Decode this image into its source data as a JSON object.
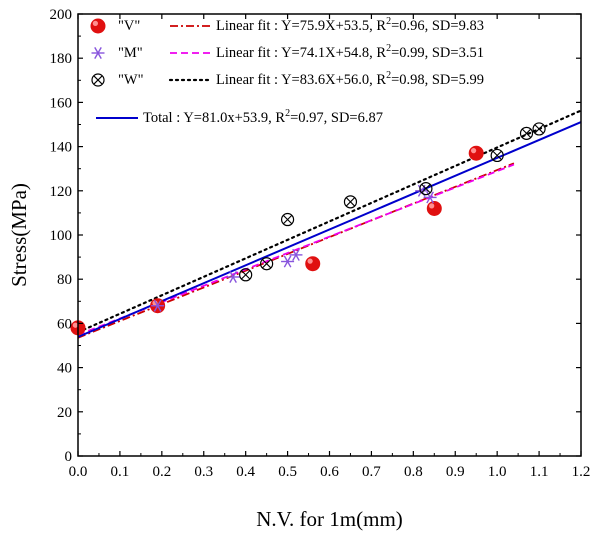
{
  "chart_data": {
    "type": "scatter",
    "xlabel": "N.V. for 1m(mm)",
    "ylabel": "Stress(MPa)",
    "xlim": [
      0.0,
      1.2
    ],
    "ylim": [
      0,
      200
    ],
    "xticks": [
      "0.0",
      "0.1",
      "0.2",
      "0.3",
      "0.4",
      "0.5",
      "0.6",
      "0.7",
      "0.8",
      "0.9",
      "1.0",
      "1.1",
      "1.2"
    ],
    "yticks": [
      "0",
      "20",
      "40",
      "60",
      "80",
      "100",
      "120",
      "140",
      "160",
      "180",
      "200"
    ],
    "grid": false,
    "legend_position": "top-left",
    "series": [
      {
        "name": "\"V\"",
        "marker": "filled-circle",
        "color": "#e01010",
        "points": [
          [
            0.0,
            58
          ],
          [
            0.19,
            68
          ],
          [
            0.56,
            87
          ],
          [
            0.85,
            112
          ],
          [
            0.95,
            137
          ]
        ],
        "fit": {
          "label_pre": "Linear fit : Y=75.9X+53.5, R",
          "sup": "2",
          "label_post": "=0.96, SD=9.83",
          "slope": 75.9,
          "intercept": 53.5,
          "x_range": [
            0.0,
            1.04
          ],
          "color": "#cc0000",
          "style": "dash-dot"
        }
      },
      {
        "name": "\"M\"",
        "marker": "star",
        "color": "#8855dd",
        "points": [
          [
            0.19,
            68
          ],
          [
            0.37,
            81
          ],
          [
            0.5,
            88
          ],
          [
            0.52,
            91
          ],
          [
            0.82,
            120
          ],
          [
            0.84,
            117
          ]
        ],
        "fit": {
          "label_pre": "Linear fit : Y=74.1X+54.8, R",
          "sup": "2",
          "label_post": "=0.99, SD=3.51",
          "slope": 74.1,
          "intercept": 54.8,
          "x_range": [
            0.0,
            1.04
          ],
          "color": "#ee00ee",
          "style": "dash"
        }
      },
      {
        "name": "\"W\"",
        "marker": "circle-x",
        "color": "#000000",
        "points": [
          [
            0.4,
            82
          ],
          [
            0.45,
            87
          ],
          [
            0.5,
            107
          ],
          [
            0.65,
            115
          ],
          [
            0.83,
            121
          ],
          [
            1.0,
            136
          ],
          [
            1.07,
            146
          ],
          [
            1.1,
            148
          ]
        ],
        "fit": {
          "label_pre": "Linear fit : Y=83.6X+56.0, R",
          "sup": "2",
          "label_post": "=0.98, SD=5.99",
          "slope": 83.6,
          "intercept": 56.0,
          "x_range": [
            0.0,
            1.2
          ],
          "color": "#000000",
          "style": "dot"
        }
      }
    ],
    "total_fit": {
      "label_pre": "Total : Y=81.0x+53.9, R",
      "sup": "2",
      "label_post": "=0.97, SD=6.87",
      "slope": 81.0,
      "intercept": 53.9,
      "x_range": [
        0.0,
        1.2
      ],
      "color": "#0000cc",
      "style": "solid"
    }
  }
}
